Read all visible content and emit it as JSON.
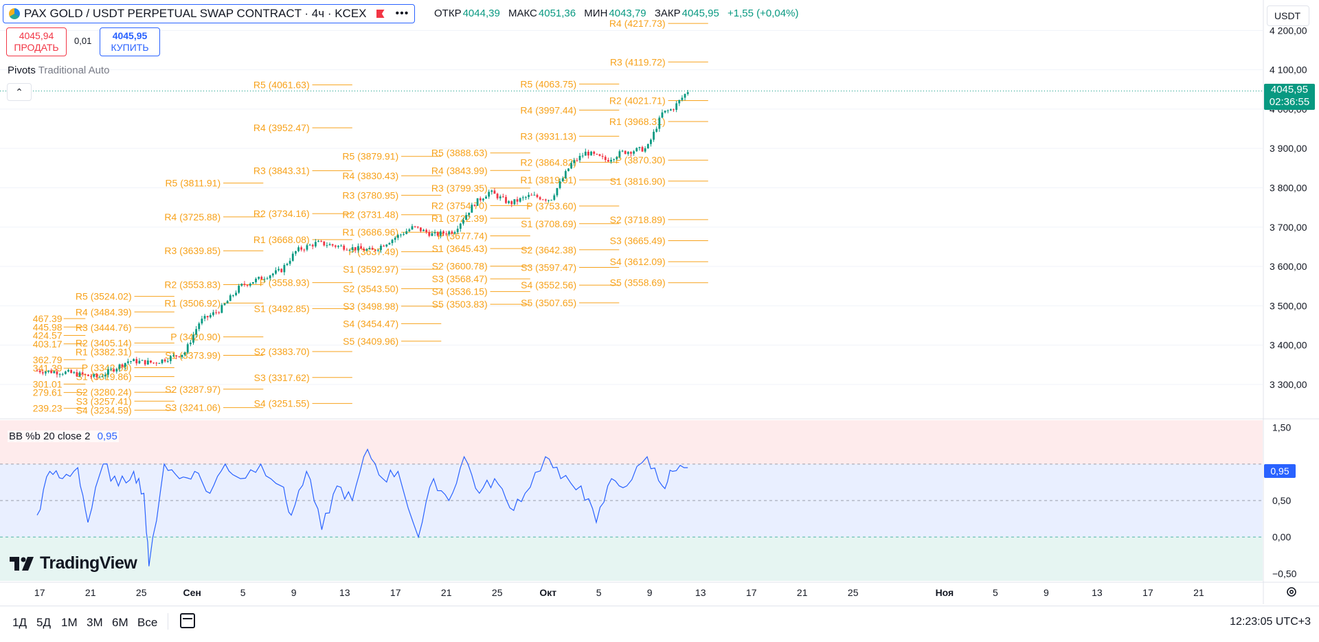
{
  "header": {
    "title": "PAX GOLD / USDT PERPETUAL SWAP CONTRACT · 4ч · KCEX",
    "ohlc": [
      {
        "label": "ОТКР",
        "value": "4044,39"
      },
      {
        "label": "МАКС",
        "value": "4051,36"
      },
      {
        "label": "МИН",
        "value": "4043,79"
      },
      {
        "label": "ЗАКР",
        "value": "4045,95"
      },
      {
        "label": "",
        "value": "+1,55 (+0,04%)"
      }
    ],
    "currency": "USDT"
  },
  "trade": {
    "sell_price": "4045,94",
    "sell_label": "ПРОДАТЬ",
    "spread": "0,01",
    "buy_price": "4045,95",
    "buy_label": "КУПИТЬ"
  },
  "pivots_indicator": {
    "name": "Pivots",
    "params": "Traditional Auto"
  },
  "price_tag": {
    "price": "4045,95",
    "countdown": "02:36:55"
  },
  "bb_indicator": {
    "name": "BB %b",
    "params": "20 close 2",
    "value": "0,95",
    "tag": "0,95"
  },
  "logo_text": "TradingView",
  "bottom": {
    "ranges": [
      "1Д",
      "5Д",
      "1М",
      "3М",
      "6М",
      "Все"
    ],
    "clock": "12:23:05 UTC+3"
  },
  "colors": {
    "up": "#089981",
    "down": "#f23645",
    "pivot": "#f7a21b",
    "bb": "#2962ff"
  },
  "chart_data": {
    "type": "candlestick",
    "price_axis": {
      "ylim": [
        3230,
        4225
      ],
      "ticks": [
        "4 200,00",
        "4 100,00",
        "4 000,00",
        "3 900,00",
        "3 800,00",
        "3 700,00",
        "3 600,00",
        "3 500,00",
        "3 400,00",
        "3 300,00"
      ],
      "tick_values": [
        4200,
        4100,
        4000,
        3900,
        3800,
        3700,
        3600,
        3500,
        3400,
        3300
      ]
    },
    "bb_axis": {
      "ylim": [
        -0.6,
        1.6
      ],
      "ticks": [
        "1,50",
        "0,50",
        "0,00",
        "−0,50"
      ],
      "tick_values": [
        1.5,
        0.5,
        0,
        -0.5
      ],
      "bands": {
        "upper": 1.0,
        "mid": 0.5,
        "lower": 0.0
      }
    },
    "time_axis": {
      "labels": [
        {
          "t": "17",
          "x": 0.05,
          "bold": false
        },
        {
          "t": "21",
          "x": 1.05,
          "bold": false
        },
        {
          "t": "25",
          "x": 2.05,
          "bold": false
        },
        {
          "t": "Сен",
          "x": 3.05,
          "bold": true
        },
        {
          "t": "5",
          "x": 4.05,
          "bold": false
        },
        {
          "t": "9",
          "x": 5.05,
          "bold": false
        },
        {
          "t": "13",
          "x": 6.05,
          "bold": false
        },
        {
          "t": "17",
          "x": 7.05,
          "bold": false
        },
        {
          "t": "21",
          "x": 8.05,
          "bold": false
        },
        {
          "t": "25",
          "x": 9.05,
          "bold": false
        },
        {
          "t": "Окт",
          "x": 10.05,
          "bold": true
        },
        {
          "t": "5",
          "x": 11.05,
          "bold": false
        },
        {
          "t": "9",
          "x": 12.05,
          "bold": false
        },
        {
          "t": "13",
          "x": 13.05,
          "bold": false
        },
        {
          "t": "17",
          "x": 14.05,
          "bold": false
        },
        {
          "t": "21",
          "x": 15.05,
          "bold": false
        },
        {
          "t": "25",
          "x": 16.05,
          "bold": false
        },
        {
          "t": "Ноя",
          "x": 17.85,
          "bold": true
        },
        {
          "t": "5",
          "x": 18.85,
          "bold": false
        },
        {
          "t": "9",
          "x": 19.85,
          "bold": false
        },
        {
          "t": "13",
          "x": 20.85,
          "bold": false
        },
        {
          "t": "17",
          "x": 21.85,
          "bold": false
        },
        {
          "t": "21",
          "x": 22.85,
          "bold": false
        }
      ]
    },
    "price_path": [
      [
        0,
        3335
      ],
      [
        0.6,
        3330
      ],
      [
        1.2,
        3318
      ],
      [
        1.8,
        3360
      ],
      [
        2.3,
        3355
      ],
      [
        2.9,
        3380
      ],
      [
        3.2,
        3460
      ],
      [
        3.6,
        3490
      ],
      [
        4.0,
        3550
      ],
      [
        4.4,
        3570
      ],
      [
        4.8,
        3590
      ],
      [
        5.1,
        3640
      ],
      [
        5.5,
        3660
      ],
      [
        6.0,
        3650
      ],
      [
        6.6,
        3640
      ],
      [
        7.0,
        3670
      ],
      [
        7.4,
        3700
      ],
      [
        7.8,
        3680
      ],
      [
        8.2,
        3690
      ],
      [
        8.6,
        3760
      ],
      [
        8.9,
        3790
      ],
      [
        9.3,
        3760
      ],
      [
        9.7,
        3780
      ],
      [
        10.1,
        3770
      ],
      [
        10.5,
        3860
      ],
      [
        10.8,
        3890
      ],
      [
        11.2,
        3870
      ],
      [
        11.5,
        3890
      ],
      [
        12.0,
        3900
      ],
      [
        12.3,
        3990
      ],
      [
        12.5,
        4000
      ],
      [
        12.8,
        4046
      ]
    ],
    "bb_path": [
      [
        0,
        0.3
      ],
      [
        0.25,
        0.9
      ],
      [
        0.5,
        0.8
      ],
      [
        0.8,
        0.95
      ],
      [
        1.0,
        0.2
      ],
      [
        1.3,
        1.0
      ],
      [
        1.6,
        0.7
      ],
      [
        1.9,
        0.9
      ],
      [
        2.1,
        0.6
      ],
      [
        2.2,
        -0.4
      ],
      [
        2.5,
        1.0
      ],
      [
        2.8,
        0.8
      ],
      [
        3.1,
        0.9
      ],
      [
        3.4,
        0.6
      ],
      [
        3.7,
        1.0
      ],
      [
        4.0,
        0.8
      ],
      [
        4.4,
        1.0
      ],
      [
        4.8,
        0.7
      ],
      [
        5.0,
        0.3
      ],
      [
        5.3,
        0.9
      ],
      [
        5.6,
        0.1
      ],
      [
        5.9,
        0.7
      ],
      [
        6.2,
        0.5
      ],
      [
        6.5,
        1.2
      ],
      [
        6.8,
        0.8
      ],
      [
        7.1,
        0.9
      ],
      [
        7.5,
        0.0
      ],
      [
        7.8,
        0.8
      ],
      [
        8.1,
        0.5
      ],
      [
        8.4,
        1.1
      ],
      [
        8.7,
        0.6
      ],
      [
        9.0,
        0.8
      ],
      [
        9.3,
        0.4
      ],
      [
        9.6,
        0.6
      ],
      [
        10.0,
        1.1
      ],
      [
        10.3,
        0.8
      ],
      [
        10.7,
        0.7
      ],
      [
        11.0,
        0.2
      ],
      [
        11.3,
        0.8
      ],
      [
        11.6,
        0.7
      ],
      [
        12.0,
        1.1
      ],
      [
        12.3,
        0.7
      ],
      [
        12.5,
        0.9
      ],
      [
        12.8,
        0.95
      ]
    ],
    "pivot_sets": [
      {
        "x0": 0.0,
        "x1": 0.95,
        "label_x": 0.0,
        "levels": [
          {
            "name": "R5",
            "label": "467.39",
            "value": 3467.39
          },
          {
            "name": "R4",
            "label": "445.98",
            "value": 3445.98
          },
          {
            "name": "R3",
            "label": "424.57",
            "value": 3424.57
          },
          {
            "name": "R2",
            "label": "403.17",
            "value": 3403.17
          },
          {
            "name": "R1",
            "label": "362.79",
            "value": 3362.79
          },
          {
            "name": "P",
            "label": "341.39",
            "value": 3341.39
          },
          {
            "name": "S1",
            "label": "301.01",
            "value": 3301.01
          },
          {
            "name": "S2",
            "label": "279.61",
            "value": 3279.61
          },
          {
            "name": "S3",
            "label": "239.23",
            "value": 3239.23
          }
        ]
      },
      {
        "x0": 0.95,
        "x1": 2.7,
        "label_x": 0.95,
        "levels": [
          {
            "name": "R5",
            "label": "R5 (3524.02)",
            "value": 3524.02
          },
          {
            "name": "R4",
            "label": "R4 (3484.39)",
            "value": 3484.39
          },
          {
            "name": "R3",
            "label": "R3 (3444.76)",
            "value": 3444.76
          },
          {
            "name": "R2",
            "label": "R2 (3405.14)",
            "value": 3405.14
          },
          {
            "name": "R1",
            "label": "R1 (3382.31)",
            "value": 3382.31
          },
          {
            "name": "P",
            "label": "P (3342.69)",
            "value": 3342.69
          },
          {
            "name": "S1",
            "label": "S1 (3319.86)",
            "value": 3319.86
          },
          {
            "name": "S2",
            "label": "S2 (3280.24)",
            "value": 3280.24
          },
          {
            "name": "S3",
            "label": "S3 (3257.41)",
            "value": 3257.41
          },
          {
            "name": "S4",
            "label": "S4 (3234.59)",
            "value": 3234.59
          }
        ]
      },
      {
        "x0": 2.7,
        "x1": 4.45,
        "label_x": 2.7,
        "levels": [
          {
            "name": "R5",
            "label": "R5 (3811.91)",
            "value": 3811.91
          },
          {
            "name": "R4",
            "label": "R4 (3725.88)",
            "value": 3725.88
          },
          {
            "name": "R3",
            "label": "R3 (3639.85)",
            "value": 3639.85
          },
          {
            "name": "R2",
            "label": "R2 (3553.83)",
            "value": 3553.83
          },
          {
            "name": "R1",
            "label": "R1 (3506.92)",
            "value": 3506.92
          },
          {
            "name": "P",
            "label": "P (3420.90)",
            "value": 3420.9
          },
          {
            "name": "S1",
            "label": "S1 (3373.99)",
            "value": 3373.99
          },
          {
            "name": "S2",
            "label": "S2 (3287.97)",
            "value": 3287.97
          },
          {
            "name": "S3",
            "label": "S3 (3241.06)",
            "value": 3241.06
          }
        ]
      },
      {
        "x0": 4.45,
        "x1": 6.2,
        "label_x": 4.45,
        "levels": [
          {
            "name": "R5",
            "label": "R5 (4061.63)",
            "value": 4061.63
          },
          {
            "name": "R4",
            "label": "R4 (3952.47)",
            "value": 3952.47
          },
          {
            "name": "R3",
            "label": "R3 (3843.31)",
            "value": 3843.31
          },
          {
            "name": "R2",
            "label": "R2 (3734.16)",
            "value": 3734.16
          },
          {
            "name": "R1",
            "label": "R1 (3668.08)",
            "value": 3668.08
          },
          {
            "name": "P",
            "label": "P (3558.93)",
            "value": 3558.93
          },
          {
            "name": "S1",
            "label": "S1 (3492.85)",
            "value": 3492.85
          },
          {
            "name": "S2",
            "label": "S2 (3383.70)",
            "value": 3383.7
          },
          {
            "name": "S3",
            "label": "S3 (3317.62)",
            "value": 3317.62
          },
          {
            "name": "S4",
            "label": "S4 (3251.55)",
            "value": 3251.55
          }
        ]
      },
      {
        "x0": 6.2,
        "x1": 7.95,
        "label_x": 6.2,
        "levels": [
          {
            "name": "R5",
            "label": "R5 (3879.91)",
            "value": 3879.91
          },
          {
            "name": "R4",
            "label": "R4 (3830.43)",
            "value": 3830.43
          },
          {
            "name": "R3",
            "label": "R3 (3780.95)",
            "value": 3780.95
          },
          {
            "name": "R2",
            "label": "R2 (3731.48)",
            "value": 3731.48
          },
          {
            "name": "R1",
            "label": "R1 (3686.96)",
            "value": 3686.96
          },
          {
            "name": "P",
            "label": "P (3637.49)",
            "value": 3637.49
          },
          {
            "name": "S1",
            "label": "S1 (3592.97)",
            "value": 3592.97
          },
          {
            "name": "S2",
            "label": "S2 (3543.50)",
            "value": 3543.5
          },
          {
            "name": "S3",
            "label": "S3 (3498.98)",
            "value": 3498.98
          },
          {
            "name": "S4",
            "label": "S4 (3454.47)",
            "value": 3454.47
          },
          {
            "name": "S5",
            "label": "S5 (3409.96)",
            "value": 3409.96
          }
        ]
      },
      {
        "x0": 7.95,
        "x1": 9.7,
        "label_x": 7.95,
        "levels": [
          {
            "name": "R5",
            "label": "R5 (3888.63)",
            "value": 3888.63
          },
          {
            "name": "R4",
            "label": "R4 (3843.99)",
            "value": 3843.99
          },
          {
            "name": "R3",
            "label": "R3 (3799.35)",
            "value": 3799.35
          },
          {
            "name": "R2",
            "label": "R2 (3754.70)",
            "value": 3754.7
          },
          {
            "name": "R1",
            "label": "R1 (3722.39)",
            "value": 3722.39
          },
          {
            "name": "P",
            "label": "P (3677.74)",
            "value": 3677.74
          },
          {
            "name": "S1",
            "label": "S1 (3645.43)",
            "value": 3645.43
          },
          {
            "name": "S2",
            "label": "S2 (3600.78)",
            "value": 3600.78
          },
          {
            "name": "S3",
            "label": "S3 (3568.47)",
            "value": 3568.47
          },
          {
            "name": "S4",
            "label": "S4 (3536.15)",
            "value": 3536.15
          },
          {
            "name": "S5",
            "label": "S5 (3503.83)",
            "value": 3503.83
          }
        ]
      },
      {
        "x0": 9.7,
        "x1": 11.45,
        "label_x": 9.7,
        "levels": [
          {
            "name": "R5",
            "label": "R5 (4063.75)",
            "value": 4063.75
          },
          {
            "name": "R4",
            "label": "R4 (3997.44)",
            "value": 3997.44
          },
          {
            "name": "R3",
            "label": "R3 (3931.13)",
            "value": 3931.13
          },
          {
            "name": "R2",
            "label": "R2 (3864.82)",
            "value": 3864.82
          },
          {
            "name": "R1",
            "label": "R1 (3819.91)",
            "value": 3819.91
          },
          {
            "name": "P",
            "label": "P (3753.60)",
            "value": 3753.6
          },
          {
            "name": "S1",
            "label": "S1 (3708.69)",
            "value": 3708.69
          },
          {
            "name": "S2",
            "label": "S2 (3642.38)",
            "value": 3642.38
          },
          {
            "name": "S3",
            "label": "S3 (3597.47)",
            "value": 3597.47
          },
          {
            "name": "S4",
            "label": "S4 (3552.56)",
            "value": 3552.56
          },
          {
            "name": "S5",
            "label": "S5 (3507.65)",
            "value": 3507.65
          }
        ]
      },
      {
        "x0": 11.45,
        "x1": 13.2,
        "label_x": 11.45,
        "levels": [
          {
            "name": "R4",
            "label": "R4 (4217.73)",
            "value": 4217.73
          },
          {
            "name": "R3",
            "label": "R3 (4119.72)",
            "value": 4119.72
          },
          {
            "name": "R2",
            "label": "R2 (4021.71)",
            "value": 4021.71
          },
          {
            "name": "R1",
            "label": "R1 (3968.31)",
            "value": 3968.31
          },
          {
            "name": "P",
            "label": "P (3870.30)",
            "value": 3870.3
          },
          {
            "name": "S1",
            "label": "S1 (3816.90)",
            "value": 3816.9
          },
          {
            "name": "S2",
            "label": "S2 (3718.89)",
            "value": 3718.89
          },
          {
            "name": "S3",
            "label": "S3 (3665.49)",
            "value": 3665.49
          },
          {
            "name": "S4",
            "label": "S4 (3612.09)",
            "value": 3612.09
          },
          {
            "name": "S5",
            "label": "S5 (3558.69)",
            "value": 3558.69
          }
        ]
      }
    ]
  }
}
